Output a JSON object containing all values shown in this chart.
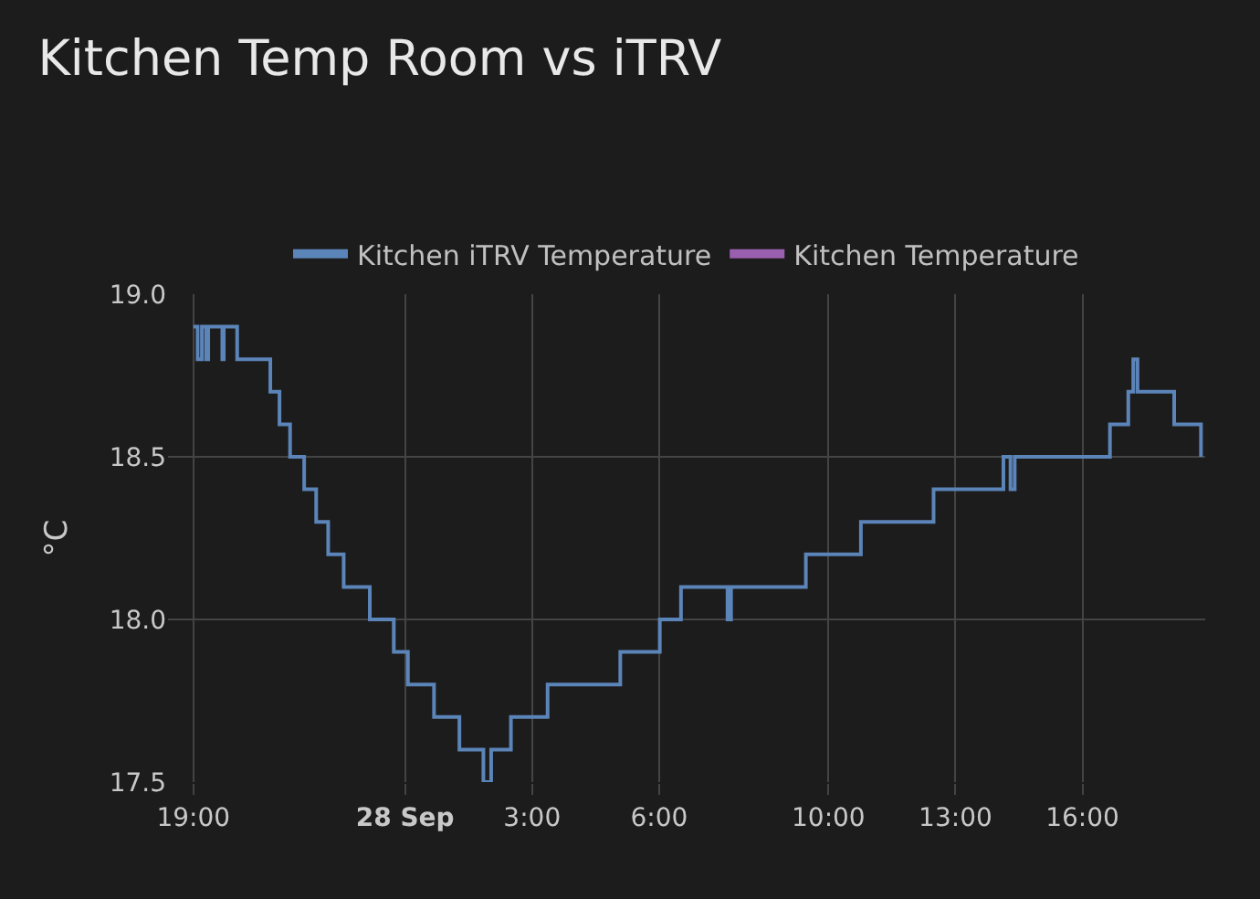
{
  "chart_data": {
    "type": "step",
    "title": "Kitchen Temp Room vs iTRV",
    "ylabel": "°C",
    "x": [
      "--09-27T19:00",
      "--09-27T19:06",
      "--09-27T19:12",
      "--09-27T19:18",
      "--09-27T19:21",
      "--09-27T19:41",
      "--09-27T19:43",
      "--09-27T20:02",
      "--09-27T20:49",
      "--09-27T21:02",
      "--09-27T21:17",
      "--09-27T21:37",
      "--09-27T21:54",
      "--09-27T22:11",
      "--09-27T22:33",
      "--09-27T23:10",
      "--09-27T23:44",
      "--09-28T00:04",
      "--09-28T00:41",
      "--09-28T01:17",
      "--09-28T01:51",
      "--09-28T02:02",
      "--09-28T02:30",
      "--09-28T03:22",
      "--09-28T05:05",
      "--09-28T06:01",
      "--09-28T06:31",
      "--09-28T07:37",
      "--09-28T07:42",
      "--09-28T09:28",
      "--09-28T10:46",
      "--09-28T12:29",
      "--09-28T14:08",
      "--09-28T14:18",
      "--09-28T14:24",
      "--09-28T16:39",
      "--09-28T17:05",
      "--09-28T17:12",
      "--09-28T17:18",
      "--09-28T18:10",
      "--09-28T18:48"
    ],
    "series": [
      {
        "name": "Kitchen iTRV Temperature",
        "color": "#5b84b8",
        "values": [
          18.9,
          18.8,
          18.9,
          18.8,
          18.9,
          18.8,
          18.9,
          18.8,
          18.7,
          18.6,
          18.5,
          18.4,
          18.3,
          18.2,
          18.1,
          18.0,
          17.9,
          17.8,
          17.7,
          17.6,
          17.5,
          17.6,
          17.7,
          17.8,
          17.9,
          18.0,
          18.1,
          18.0,
          18.1,
          18.2,
          18.3,
          18.4,
          18.5,
          18.4,
          18.5,
          18.6,
          18.7,
          18.8,
          18.7,
          18.6,
          18.5
        ]
      },
      {
        "name": "Kitchen Temperature",
        "color": "#9b5fb0",
        "values": [
          null,
          null,
          null,
          null,
          null,
          null,
          null,
          null,
          null,
          null,
          null,
          null,
          null,
          null,
          null,
          null,
          null,
          null,
          null,
          null,
          null,
          null,
          null,
          null,
          null,
          null,
          null,
          null,
          null,
          null,
          null,
          null,
          null,
          null,
          null,
          null,
          null,
          null,
          null,
          null,
          null
        ]
      }
    ],
    "xlim": [
      "--09-27T18:24",
      "--09-28T18:54"
    ],
    "xticks": [
      {
        "value": "--09-27T19:00",
        "label": "19:00"
      },
      {
        "value": "--09-28T00:00",
        "label": "28 Sep"
      },
      {
        "value": "--09-28T03:00",
        "label": "3:00"
      },
      {
        "value": "--09-28T06:00",
        "label": "6:00"
      },
      {
        "value": "--09-28T10:00",
        "label": "10:00"
      },
      {
        "value": "--09-28T13:00",
        "label": "13:00"
      },
      {
        "value": "--09-28T16:00",
        "label": "16:00"
      }
    ],
    "ylim": [
      17.5,
      19.0
    ],
    "yticks": [
      17.5,
      {
        "value": 18,
        "label": "18.0"
      },
      18.5,
      {
        "value": 19,
        "label": "19.0"
      }
    ],
    "grid": true,
    "legend": "top",
    "marker": "none",
    "line_style": "solid"
  }
}
